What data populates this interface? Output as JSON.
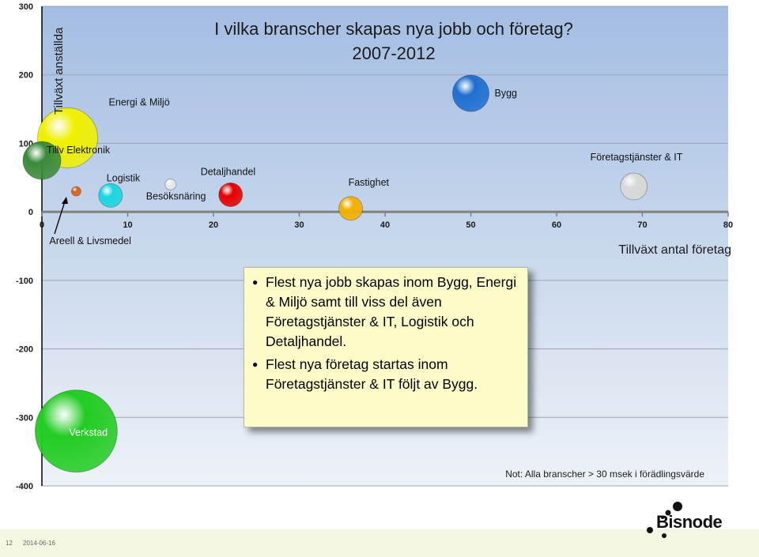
{
  "chart_data": {
    "type": "scatter",
    "title": "I vilka branscher skapas nya jobb och företag?",
    "subtitle": "2007-2012",
    "xlabel": "Tillväxt antal företag",
    "ylabel": "Tillväxt anställda",
    "xlim": [
      0,
      80
    ],
    "ylim": [
      -400,
      300
    ],
    "x_ticks": [
      "0",
      "10",
      "20",
      "30",
      "40",
      "50",
      "60",
      "70",
      "80"
    ],
    "y_ticks": [
      "300",
      "200",
      "100",
      "0",
      "-100",
      "-200",
      "-300",
      "-400"
    ],
    "grid": true,
    "points": [
      {
        "label": "Bygg",
        "x": 50,
        "y": 173,
        "color": "#1f6fd0"
      },
      {
        "label": "Energi & Miljö",
        "x": 3,
        "y": 108,
        "color": "#f0f000"
      },
      {
        "label": "Tillv Elektronik",
        "x": 0,
        "y": 75,
        "color": "#3a8a3a"
      },
      {
        "label": "Logistik",
        "x": 8,
        "y": 24,
        "color": "#19d6e0"
      },
      {
        "label": "Areell & Livsmedel",
        "x": 4,
        "y": 30,
        "color": "#e06010"
      },
      {
        "label": "Besöksnäring",
        "x": 15,
        "y": 40,
        "color": "#e8e8e8"
      },
      {
        "label": "Detaljhandel",
        "x": 22,
        "y": 25,
        "color": "#e80000"
      },
      {
        "label": "Fastighet",
        "x": 36,
        "y": 5,
        "color": "#f2b000"
      },
      {
        "label": "Företagstjänster & IT",
        "x": 69,
        "y": 37,
        "color": "#d8d8d8"
      },
      {
        "label": "Verkstad",
        "x": 4,
        "y": -320,
        "color": "#22cc22"
      }
    ],
    "note": "Not: Alla branscher > 30 msek i förädlingsvärde"
  },
  "callout": {
    "bullets": [
      "Flest nya jobb skapas inom Bygg, Energi & Miljö samt till viss del även Företagstjänster & IT, Logistik och Detaljhandel.",
      "Flest nya företag startas inom Företagstjänster & IT följt av Bygg."
    ]
  },
  "footer": {
    "page": "12",
    "date": "2014-06-16"
  },
  "logo": {
    "text": "Bisnode"
  }
}
